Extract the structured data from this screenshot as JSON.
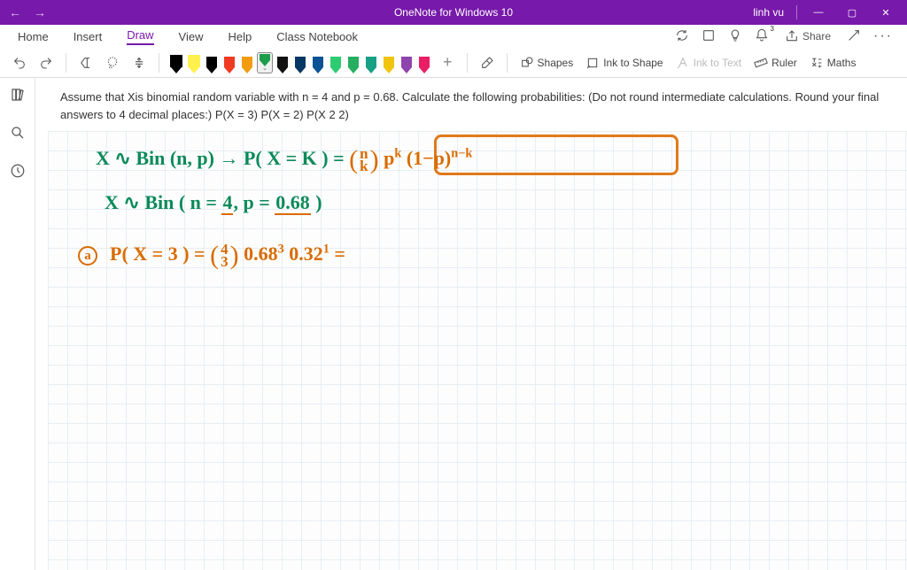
{
  "titlebar": {
    "app_title": "OneNote for Windows 10",
    "user": "linh vu",
    "minimize": "—",
    "maximize": "▢",
    "close": "✕"
  },
  "tabs": {
    "home": "Home",
    "insert": "Insert",
    "draw": "Draw",
    "view": "View",
    "help": "Help",
    "class": "Class Notebook"
  },
  "ribbon_right": {
    "share": "Share",
    "bell_badge": "3"
  },
  "toolbar": {
    "shapes": "Shapes",
    "ink_to_shape": "Ink to Shape",
    "ink_to_text": "Ink to Text",
    "ruler": "Ruler",
    "maths": "Maths"
  },
  "pens": {
    "colors": [
      {
        "c": "#000000",
        "hl": true
      },
      {
        "c": "#fff04d",
        "hl": true
      },
      {
        "c": "#000000"
      },
      {
        "c": "#ef3b24"
      },
      {
        "c": "#f39c12"
      },
      {
        "c": "#1b9e4b",
        "sel": true
      },
      {
        "c": "#111111"
      },
      {
        "c": "#073763"
      },
      {
        "c": "#0b5394"
      },
      {
        "c": "#2ecc71"
      },
      {
        "c": "#27ae60"
      },
      {
        "c": "#16a085"
      },
      {
        "c": "#f1c40f"
      },
      {
        "c": "#8e44ad"
      },
      {
        "c": "#e91e63"
      }
    ]
  },
  "problem": {
    "text": "Assume that Xis binomial random variable with n = 4 and p = 0.68. Calculate the following probabilities: (Do not round intermediate calculations. Round your final answers to 4 decimal places:) P(X = 3) P(X = 2) P(X 2 2)"
  },
  "handwriting": {
    "line1_a": "X ∿ Bin  (n, p) →   P( X = K )  =  ",
    "line1_b_top": "n",
    "line1_b_bot": "k",
    "line1_c": " p",
    "line1_c_sup": "k",
    "line1_d": "  (1−p)",
    "line1_d_sup": "n−k",
    "line2_a": "X ∿ Bin ( n = ",
    "line2_n": "4",
    "line2_b": ", p = ",
    "line2_p": "0.68",
    "line2_c": " )",
    "line3_marker": "a",
    "line3_a": "P( X = 3 )  =  ",
    "line3_top": "4",
    "line3_bot": "3",
    "line3_b": " 0.68",
    "line3_b_sup": "3",
    "line3_c": "  0.32",
    "line3_c_sup": "1",
    "line3_d": "  ="
  }
}
